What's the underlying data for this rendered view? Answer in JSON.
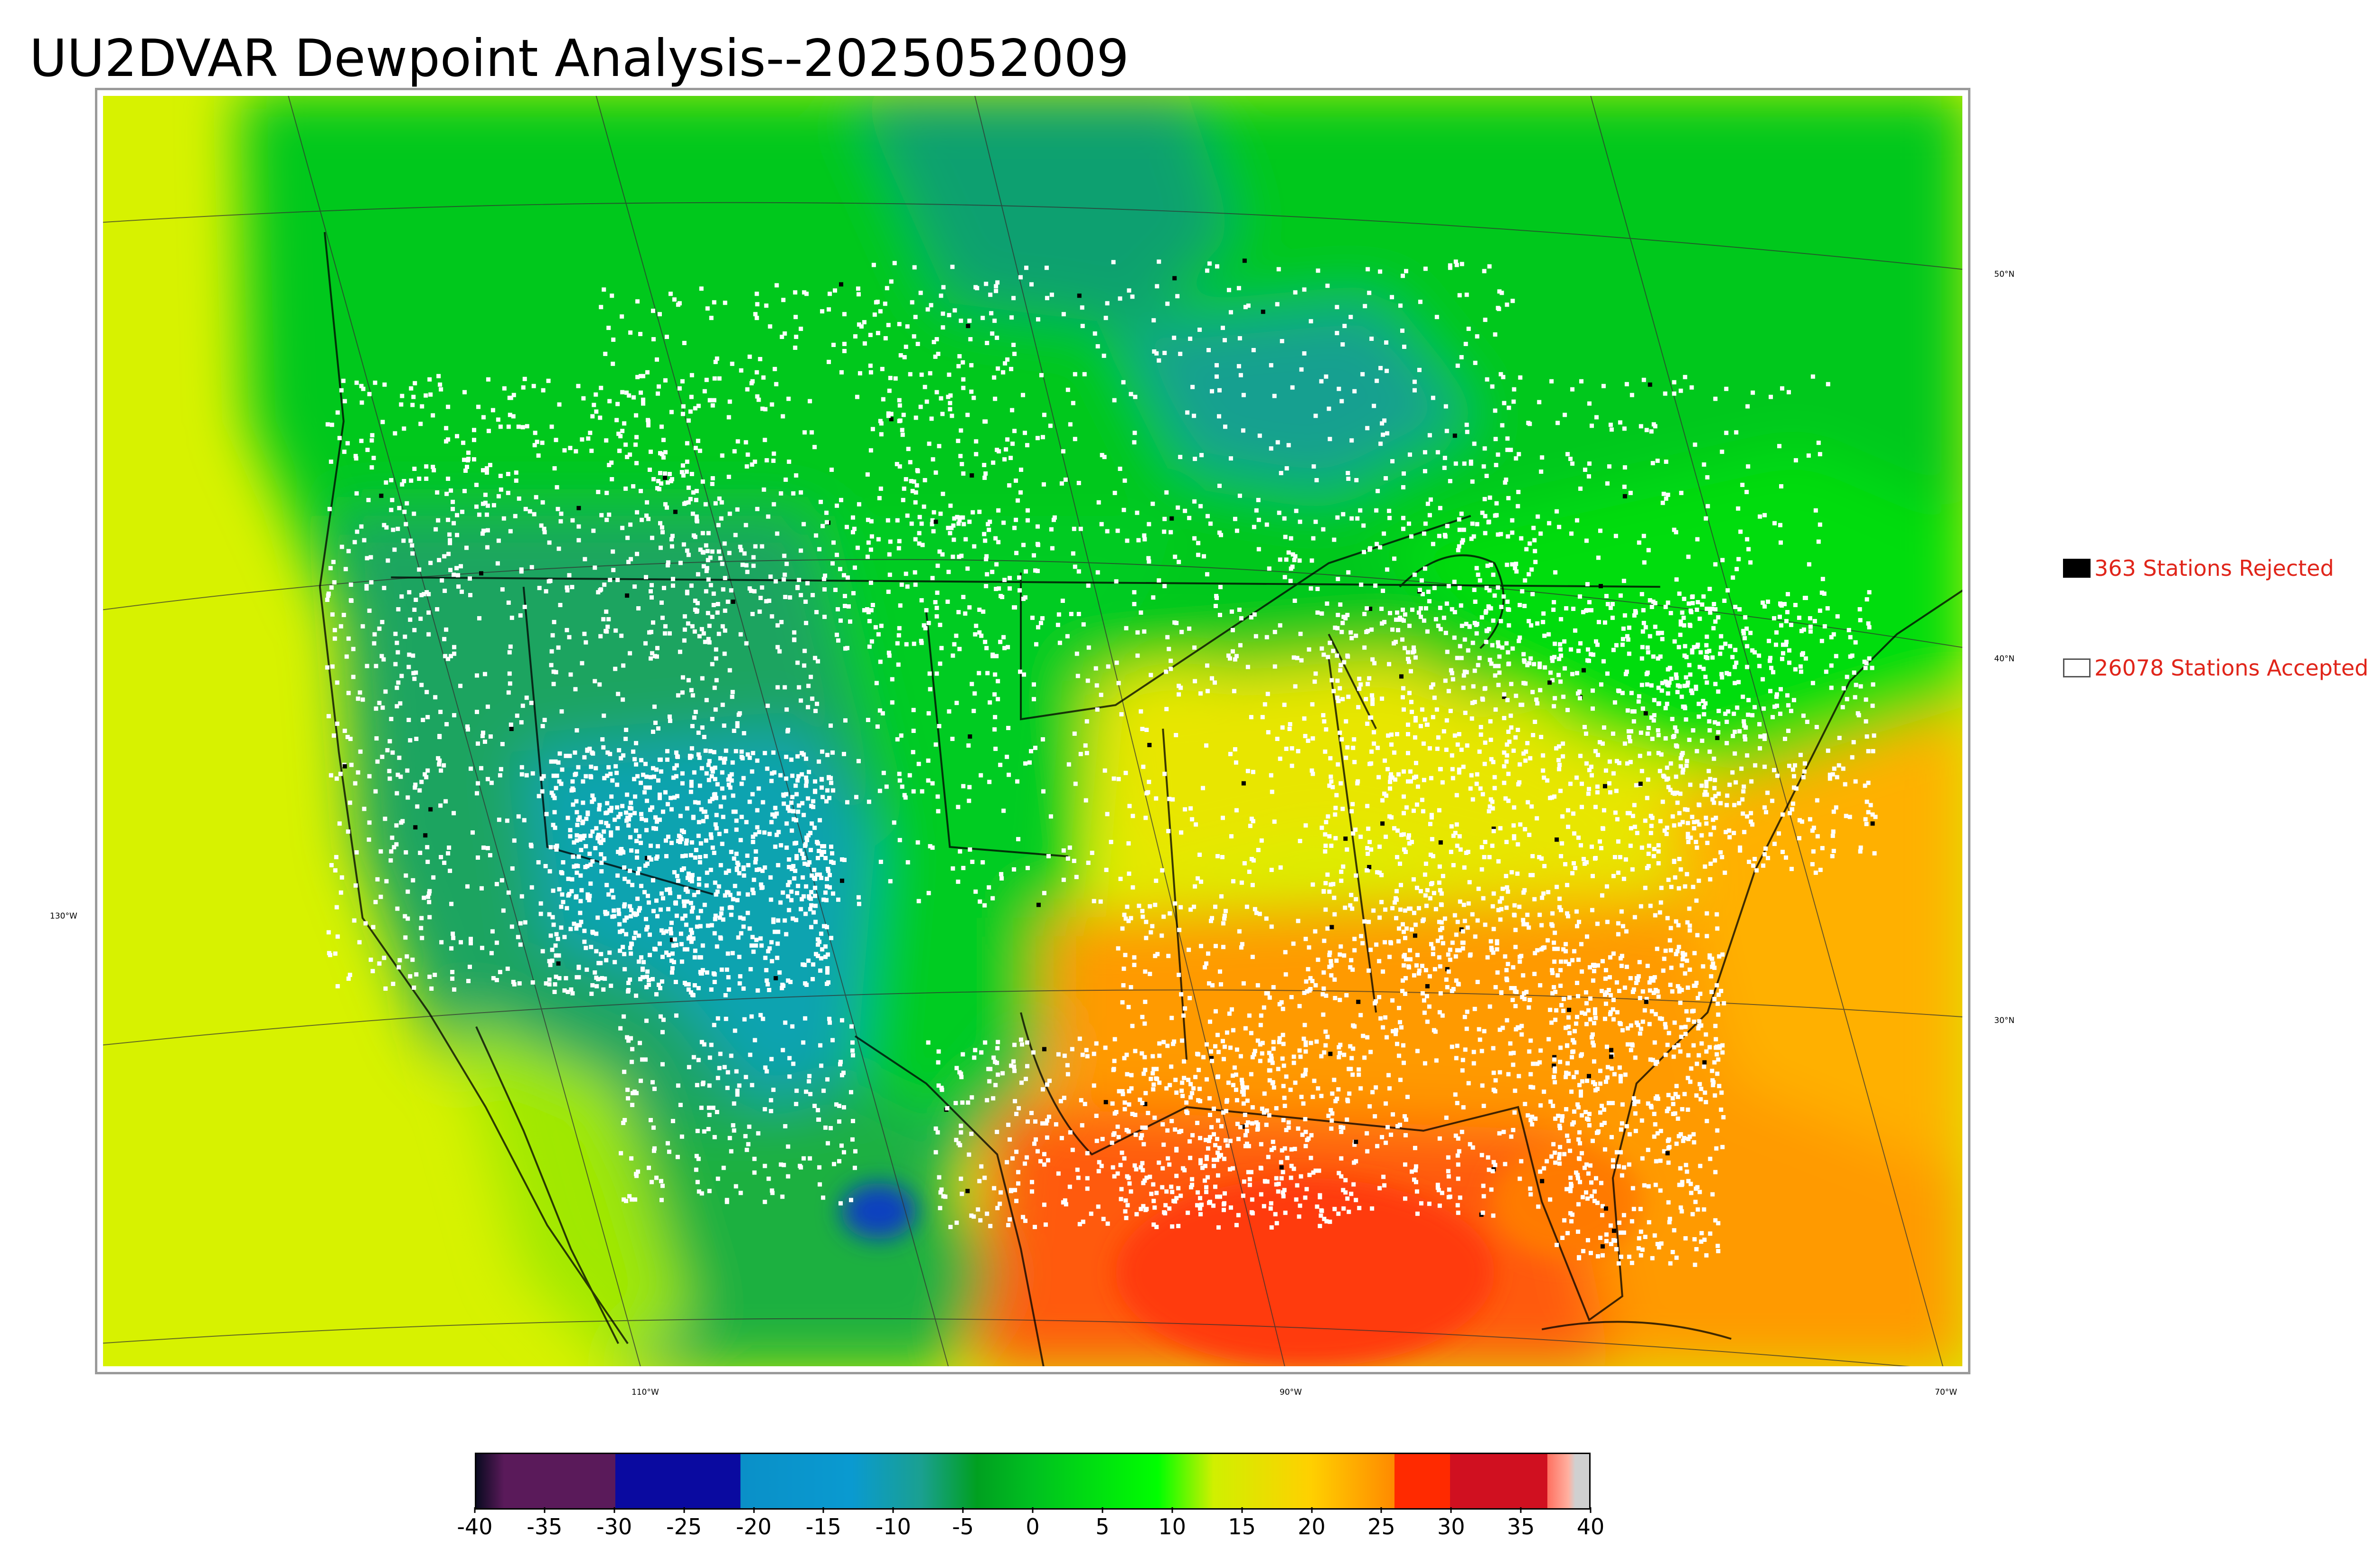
{
  "title": "UU2DVAR Dewpoint Analysis--2025052009",
  "map": {
    "lat_labels": [
      "50°N",
      "40°N",
      "30°N"
    ],
    "lon_labels": [
      "130°W",
      "110°W",
      "90°W",
      "70°W"
    ],
    "colors": {
      "pacific": "#d7f200",
      "canada": "#00c81a",
      "mountain_west": "#1aa07a",
      "dry_core": "#0aa3b0",
      "plains": "#00cc22",
      "southeast": "#ff9a00",
      "gulf": "#ff5a10",
      "atlantic": "#ffb000",
      "midwest": "#e8e600",
      "border_line": "#000000",
      "station_accepted": "#ffffff",
      "station_rejected": "#000000"
    }
  },
  "legend": {
    "rejected_label": "363 Stations Rejected",
    "accepted_label": "26078 Stations Accepted",
    "rejected_color": "#000000",
    "accepted_color": "#ffffff",
    "text_color": "#e0251a"
  },
  "colorbar": {
    "ticks": [
      "-40",
      "-35",
      "-30",
      "-25",
      "-20",
      "-15",
      "-10",
      "-5",
      "0",
      "5",
      "10",
      "15",
      "20",
      "25",
      "30",
      "35",
      "40"
    ],
    "min": -40,
    "max": 40,
    "stops": [
      {
        "v": -40,
        "c": "#0a0a20"
      },
      {
        "v": -38,
        "c": "#5a1a5a"
      },
      {
        "v": -30,
        "c": "#5a1a5a"
      },
      {
        "v": -30,
        "c": "#0a0aa0"
      },
      {
        "v": -21,
        "c": "#0a0aa0"
      },
      {
        "v": -21,
        "c": "#0a90c8"
      },
      {
        "v": -13,
        "c": "#0a9ad0"
      },
      {
        "v": -8,
        "c": "#1aa090"
      },
      {
        "v": -4,
        "c": "#00a020"
      },
      {
        "v": 0,
        "c": "#00c020"
      },
      {
        "v": 9,
        "c": "#00ff00"
      },
      {
        "v": 13,
        "c": "#d0f000"
      },
      {
        "v": 20,
        "c": "#ffd000"
      },
      {
        "v": 26,
        "c": "#ff8a00"
      },
      {
        "v": 26,
        "c": "#ff2a00"
      },
      {
        "v": 30,
        "c": "#ff2a00"
      },
      {
        "v": 30,
        "c": "#d01020"
      },
      {
        "v": 37,
        "c": "#d01020"
      },
      {
        "v": 37,
        "c": "#ff7060"
      },
      {
        "v": 38.5,
        "c": "#ffb0a0"
      },
      {
        "v": 39,
        "c": "#d0d0d0"
      },
      {
        "v": 40,
        "c": "#d0d0d0"
      }
    ]
  }
}
